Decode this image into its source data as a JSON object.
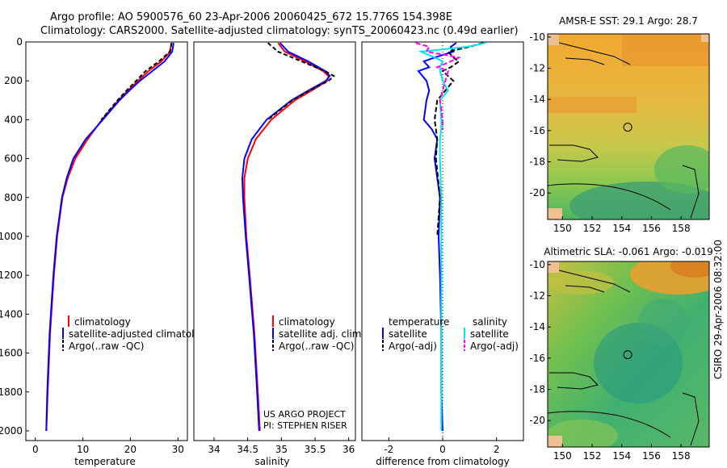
{
  "header": {
    "line1": "Argo profile: AO 5900576_60 23-Apr-2006 20060425_672 15.776S 154.398E",
    "line2": "Climatology: CARS2000. Satellite-adjusted climatology: synTS_20060423.nc (0.49d earlier)"
  },
  "colors": {
    "clim": "#ff0000",
    "sat": "#0000ff",
    "argo": "#000000",
    "sal_sat": "#00e5ee",
    "sal_argo": "#ff00ff"
  },
  "chart_data": [
    {
      "id": "temperature",
      "type": "line",
      "xlabel": "temperature",
      "xlim": [
        -2,
        32
      ],
      "ylim": [
        0,
        2050
      ],
      "xticks": [
        0,
        10,
        20,
        30
      ],
      "yticks": [
        0,
        200,
        400,
        600,
        800,
        1000,
        1200,
        1400,
        1600,
        1800,
        2000
      ],
      "depth": [
        5,
        50,
        100,
        150,
        200,
        250,
        300,
        400,
        500,
        600,
        700,
        800,
        1000,
        1200,
        1500,
        1800,
        2000
      ],
      "series": [
        {
          "name": "climatology",
          "color_key": "clim",
          "dash": "",
          "values": [
            28.6,
            28.4,
            26.5,
            23.8,
            21.6,
            19.5,
            17.5,
            14.0,
            11.0,
            8.4,
            6.8,
            5.7,
            4.6,
            3.9,
            3.1,
            2.6,
            2.3
          ]
        },
        {
          "name": "satellite-adjusted climatology",
          "color_key": "sat",
          "dash": "",
          "values": [
            29.1,
            28.8,
            27.2,
            24.6,
            22.0,
            19.8,
            17.7,
            14.2,
            10.6,
            8.0,
            6.6,
            5.6,
            4.5,
            3.8,
            3.0,
            2.5,
            2.3
          ]
        },
        {
          "name": "Argo(..raw -QC)",
          "color_key": "argo",
          "dash": "5,3",
          "values": [
            28.7,
            28.3,
            26.0,
            23.2,
            21.2,
            19.2,
            17.3,
            13.9,
            null,
            null,
            null,
            null,
            null,
            null,
            null,
            null,
            null
          ]
        }
      ],
      "legend": [
        "climatology",
        "satellite-adjusted climatology",
        "Argo(..raw -QC)"
      ]
    },
    {
      "id": "salinity",
      "type": "line",
      "xlabel": "salinity",
      "xlim": [
        33.7,
        36.1
      ],
      "ylim": [
        0,
        2050
      ],
      "xticks": [
        34,
        34.5,
        35,
        35.5,
        36
      ],
      "xticklabels": [
        "34",
        "34.5",
        "35",
        "35.5",
        "36"
      ],
      "depth": [
        5,
        50,
        100,
        150,
        175,
        200,
        250,
        300,
        400,
        500,
        600,
        700,
        800,
        1000,
        1200,
        1500,
        1800,
        2000
      ],
      "series": [
        {
          "name": "climatology",
          "color_key": "clim",
          "dash": "",
          "values": [
            34.95,
            35.05,
            35.35,
            35.62,
            35.7,
            35.68,
            35.45,
            35.2,
            34.85,
            34.62,
            34.5,
            34.45,
            34.45,
            34.48,
            34.53,
            34.6,
            34.65,
            34.68
          ]
        },
        {
          "name": "satellite adj. clim.",
          "color_key": "sat",
          "dash": "",
          "values": [
            34.98,
            35.1,
            35.4,
            35.65,
            35.72,
            35.66,
            35.4,
            35.15,
            34.78,
            34.56,
            34.45,
            34.42,
            34.43,
            34.47,
            34.52,
            34.59,
            34.64,
            34.67
          ]
        },
        {
          "name": "Argo(..raw -QC)",
          "color_key": "argo",
          "dash": "5,3",
          "values": [
            34.8,
            34.95,
            35.3,
            35.65,
            35.78,
            35.7,
            35.42,
            35.16,
            34.8,
            null,
            null,
            null,
            null,
            null,
            null,
            null,
            null,
            null
          ]
        }
      ],
      "legend": [
        "climatology",
        "satellite adj. clim.",
        "Argo(..raw -QC)"
      ],
      "note": [
        "US ARGO PROJECT",
        "PI: STEPHEN RISER"
      ]
    },
    {
      "id": "difference",
      "type": "line",
      "xlabel": "difference from climatology",
      "xlim": [
        -3,
        3
      ],
      "ylim": [
        0,
        2050
      ],
      "xticks": [
        -2,
        0,
        2
      ],
      "depth": [
        5,
        25,
        50,
        80,
        100,
        130,
        150,
        200,
        250,
        300,
        400,
        450,
        500,
        600,
        800,
        1000,
        1200,
        1500,
        1800,
        2000
      ],
      "series": [
        {
          "name": "temperature satellite",
          "color_key": "sat",
          "dash": "",
          "values": [
            0.5,
            0.3,
            0.4,
            -0.3,
            -0.7,
            -0.5,
            -0.9,
            -0.6,
            -0.5,
            -0.6,
            -0.7,
            -0.4,
            -0.2,
            -0.3,
            -0.1,
            -0.15,
            -0.1,
            -0.05,
            -0.05,
            0.0
          ]
        },
        {
          "name": "temperature Argo(-adj)",
          "color_key": "argo",
          "dash": "6,3",
          "values": [
            1.5,
            1.0,
            0.2,
            0.4,
            0.6,
            0.3,
            0.0,
            0.4,
            0.1,
            -0.2,
            -0.3,
            -0.25,
            -0.2,
            -0.25,
            -0.1,
            -0.2,
            null,
            null,
            null,
            null
          ]
        },
        {
          "name": "salinity satellite",
          "color_key": "sal_sat",
          "dash": "",
          "values": [
            1.6,
            0.9,
            -0.8,
            -0.3,
            0.0,
            -0.1,
            -0.1,
            0.0,
            0.2,
            -0.1,
            -0.05,
            -0.05,
            -0.1,
            -0.1,
            -0.05,
            -0.05,
            -0.05,
            -0.05,
            -0.05,
            -0.05
          ]
        },
        {
          "name": "salinity Argo(-adj)",
          "color_key": "sal_argo",
          "dash": "6,3",
          "values": [
            -1.0,
            -0.5,
            -0.6,
            0.6,
            0.3,
            -0.2,
            0.2,
            0.1,
            0.0,
            -0.1,
            0.0,
            0.0,
            null,
            null,
            null,
            null,
            null,
            null,
            null,
            null
          ]
        }
      ],
      "legend_titles": [
        "temperature",
        "salinity"
      ],
      "legend": [
        "satellite",
        "Argo(-adj)",
        "satellite",
        "Argo(-adj)"
      ]
    }
  ],
  "maps": [
    {
      "id": "sst",
      "title": "AMSR-E SST: 29.1  Argo: 28.7",
      "lat": [
        -10,
        -12,
        -14,
        -16,
        -18,
        -20
      ],
      "lon": [
        150,
        152,
        154,
        156,
        158
      ],
      "yticklabels": [
        "-10",
        "-12",
        "-14",
        "-16",
        "-18",
        "-20"
      ],
      "xticklabels": [
        "150",
        "152",
        "154",
        "156",
        "158"
      ],
      "float_lon": 154.4,
      "float_lat": -15.78
    },
    {
      "id": "sla",
      "title": "Altimetric SLA: -0.061  Argo: -0.019",
      "lat": [
        -10,
        -12,
        -14,
        -16,
        -18,
        -20
      ],
      "lon": [
        150,
        152,
        154,
        156,
        158
      ],
      "yticklabels": [
        "-10",
        "-12",
        "-14",
        "-16",
        "-18",
        "-20"
      ],
      "xticklabels": [
        "150",
        "152",
        "154",
        "156",
        "158"
      ],
      "float_lon": 154.4,
      "float_lat": -15.78
    }
  ],
  "footer": {
    "stamp": "CSIRO 29-Apr-2006 08:32:00"
  }
}
